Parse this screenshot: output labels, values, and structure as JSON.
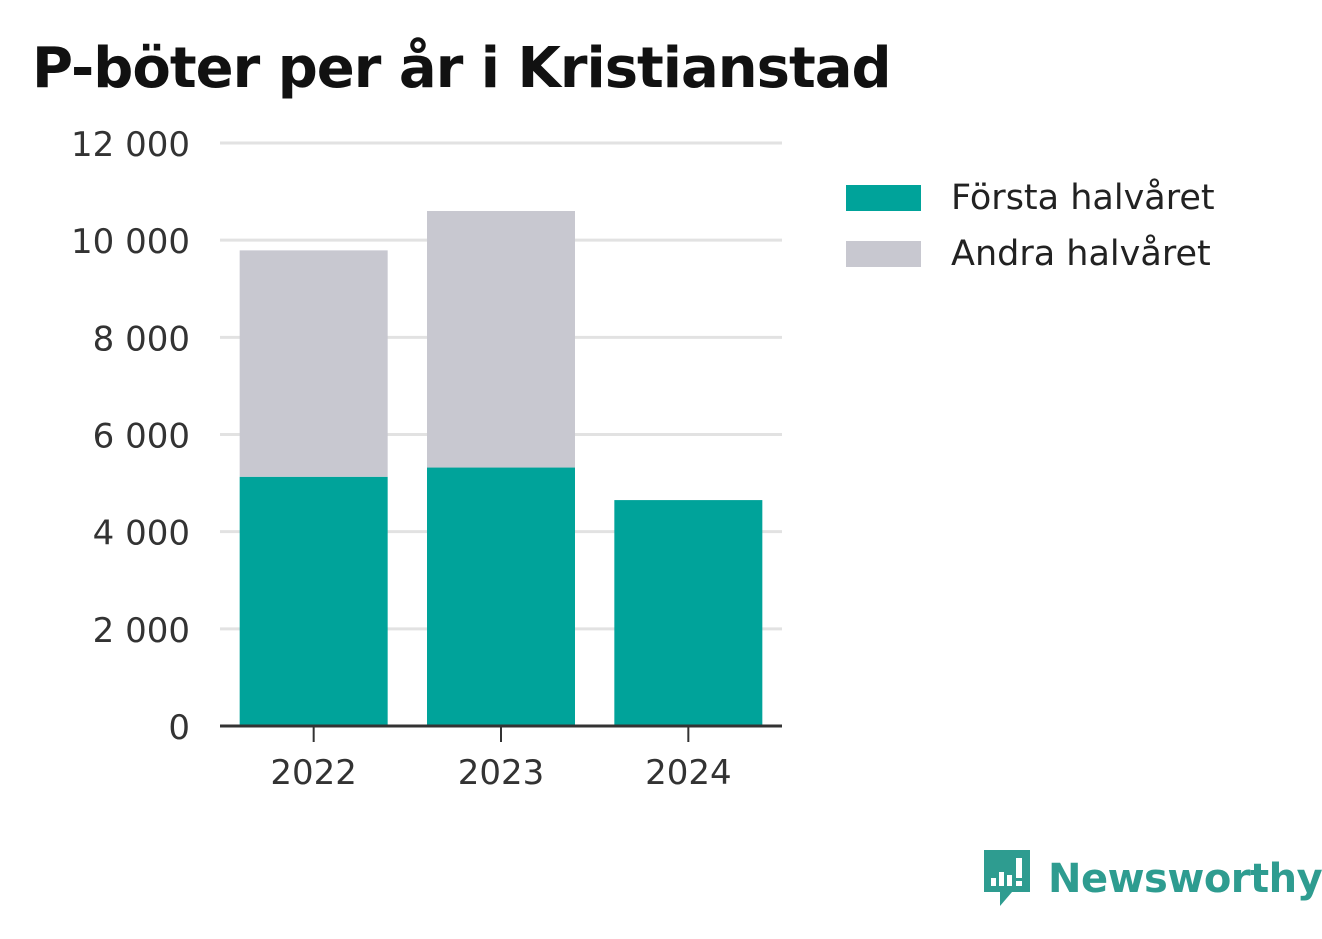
{
  "chart_data": {
    "type": "bar",
    "stacked": true,
    "title": "P-böter per år i Kristianstad",
    "xlabel": "",
    "ylabel": "",
    "categories": [
      "2022",
      "2023",
      "2024"
    ],
    "series": [
      {
        "name": "Första halvåret",
        "values": [
          5130,
          5320,
          4650
        ],
        "color": "#00a39a"
      },
      {
        "name": "Andra halvåret",
        "values": [
          4660,
          5280,
          0
        ],
        "color": "#c8c8d0"
      }
    ],
    "ylim": [
      0,
      12000
    ],
    "yticks": [
      0,
      2000,
      4000,
      6000,
      8000,
      10000,
      12000
    ],
    "ytick_labels": [
      "0",
      "2 000",
      "4 000",
      "6 000",
      "8 000",
      "10 000",
      "12 000"
    ],
    "grid": true,
    "legend_position": "right"
  },
  "branding": {
    "logo_text": "Newsworthy",
    "logo_icon": "newsworthy-chart-bubble-icon",
    "logo_color": "#2e9c90"
  }
}
